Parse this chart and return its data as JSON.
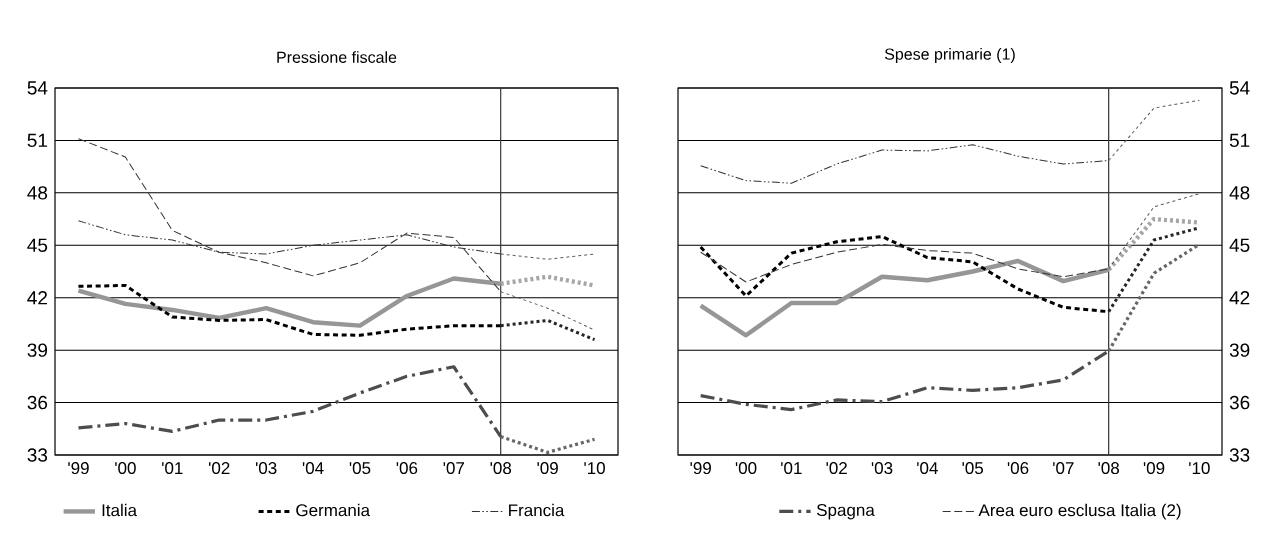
{
  "chart_data": [
    {
      "type": "line",
      "title": "Pressione fiscale",
      "xlim": [
        1998.5,
        2010.5
      ],
      "xticks": [
        {
          "value": 1999,
          "label": "'99"
        },
        {
          "value": 2000,
          "label": "'00"
        },
        {
          "value": 2001,
          "label": "'01"
        },
        {
          "value": 2002,
          "label": "'02"
        },
        {
          "value": 2003,
          "label": "'03"
        },
        {
          "value": 2004,
          "label": "'04"
        },
        {
          "value": 2005,
          "label": "'05"
        },
        {
          "value": 2006,
          "label": "'06"
        },
        {
          "value": 2007,
          "label": "'07"
        },
        {
          "value": 2008,
          "label": "'08"
        },
        {
          "value": 2009,
          "label": "'09"
        },
        {
          "value": 2010,
          "label": "'10"
        }
      ],
      "ylim": [
        33,
        54
      ],
      "yticks": [
        33,
        36,
        39,
        42,
        45,
        48,
        51,
        54
      ],
      "grid": "y",
      "legend": "bottom",
      "ref_lines": [
        {
          "axis": "x",
          "value": 2008,
          "color": "#333333"
        }
      ],
      "series": [
        {
          "name": "Italia",
          "color": "#969696",
          "line_style": "solid",
          "x": [
            1999,
            2000,
            2001,
            2002,
            2003,
            2004,
            2005,
            2006,
            2007,
            2008
          ],
          "values": [
            42.4,
            41.65,
            41.3,
            40.85,
            41.4,
            40.6,
            40.4,
            42.1,
            43.1,
            42.8
          ]
        },
        {
          "name": "Germania",
          "color": "#000000",
          "line_style": "dashed",
          "x": [
            1999,
            2000,
            2001,
            2002,
            2003,
            2004,
            2005,
            2006,
            2007,
            2008
          ],
          "values": [
            42.65,
            42.7,
            40.9,
            40.7,
            40.75,
            39.9,
            39.85,
            40.2,
            40.4,
            40.4
          ]
        },
        {
          "name": "Francia",
          "color": "#333333",
          "line_style": "dashed",
          "x": [
            1999,
            2000,
            2001,
            2002,
            2003,
            2004,
            2005,
            2006,
            2007,
            2008
          ],
          "values": [
            46.4,
            45.6,
            45.3,
            44.6,
            44.5,
            45.0,
            45.3,
            45.6,
            44.9,
            44.5
          ]
        },
        {
          "name": "Spagna",
          "color": "#4d4d4d",
          "line_style": "dashed",
          "x": [
            1999,
            2000,
            2001,
            2002,
            2003,
            2004,
            2005,
            2006,
            2007,
            2008
          ],
          "values": [
            34.55,
            34.8,
            34.35,
            35.0,
            35.0,
            35.5,
            36.55,
            37.5,
            38.05,
            34.05
          ]
        },
        {
          "name": "Area euro esclusa Italia (2)",
          "color": "#333333",
          "line_style": "dashed",
          "x": [
            1999,
            2000,
            2001,
            2002,
            2003,
            2004,
            2005,
            2006,
            2007,
            2008
          ],
          "values": [
            51.1,
            50.05,
            45.85,
            44.6,
            44.0,
            43.25,
            44.0,
            45.7,
            45.45,
            42.35
          ]
        },
        {
          "color": "#a6a6a6",
          "line_style": "dotted",
          "x": [
            2008,
            2009,
            2010
          ],
          "values": [
            42.8,
            43.2,
            42.7
          ]
        },
        {
          "color": "#262626",
          "line_style": "dotted",
          "x": [
            2008,
            2009,
            2010
          ],
          "values": [
            40.4,
            40.7,
            39.6
          ]
        },
        {
          "color": "#595959",
          "line_style": "dotted",
          "x": [
            2008,
            2009,
            2010
          ],
          "values": [
            44.5,
            44.2,
            44.5
          ]
        },
        {
          "color": "#666666",
          "line_style": "dotted",
          "x": [
            2008,
            2009,
            2010
          ],
          "values": [
            34.05,
            33.15,
            33.9
          ]
        },
        {
          "color": "#595959",
          "line_style": "dotted",
          "x": [
            2008,
            2009,
            2010
          ],
          "values": [
            42.35,
            41.4,
            40.15
          ]
        }
      ]
    },
    {
      "type": "line",
      "title": "Spese primarie (1)",
      "xlim": [
        1998.5,
        2010.5
      ],
      "xticks": [
        {
          "value": 1999,
          "label": "'99"
        },
        {
          "value": 2000,
          "label": "'00"
        },
        {
          "value": 2001,
          "label": "'01"
        },
        {
          "value": 2002,
          "label": "'02"
        },
        {
          "value": 2003,
          "label": "'03"
        },
        {
          "value": 2004,
          "label": "'04"
        },
        {
          "value": 2005,
          "label": "'05"
        },
        {
          "value": 2006,
          "label": "'06"
        },
        {
          "value": 2007,
          "label": "'07"
        },
        {
          "value": 2008,
          "label": "'08"
        },
        {
          "value": 2009,
          "label": "'09"
        },
        {
          "value": 2010,
          "label": "'10"
        }
      ],
      "ylim": [
        33,
        54
      ],
      "yticks": [
        33,
        36,
        39,
        42,
        45,
        48,
        51,
        54
      ],
      "grid": "y",
      "ref_lines": [
        {
          "axis": "x",
          "value": 2008,
          "color": "#333333"
        }
      ],
      "series": [
        {
          "color": "#969696",
          "line_style": "solid",
          "x": [
            1999,
            2000,
            2001,
            2002,
            2003,
            2004,
            2005,
            2006,
            2007,
            2008
          ],
          "values": [
            41.55,
            39.85,
            41.7,
            41.7,
            43.2,
            43.0,
            43.5,
            44.1,
            42.95,
            43.6
          ]
        },
        {
          "color": "#000000",
          "line_style": "dashed",
          "x": [
            1999,
            2000,
            2001,
            2002,
            2003,
            2004,
            2005,
            2006,
            2007,
            2008
          ],
          "values": [
            44.9,
            42.1,
            44.55,
            45.2,
            45.5,
            44.3,
            44.05,
            42.5,
            41.45,
            41.2
          ]
        },
        {
          "color": "#333333",
          "line_style": "dashed",
          "x": [
            1999,
            2000,
            2001,
            2002,
            2003,
            2004,
            2005,
            2006,
            2007,
            2008
          ],
          "values": [
            49.55,
            48.7,
            48.55,
            49.65,
            50.45,
            50.4,
            50.75,
            50.1,
            49.65,
            49.85
          ]
        },
        {
          "color": "#4d4d4d",
          "line_style": "dashed",
          "x": [
            1999,
            2000,
            2001,
            2002,
            2003,
            2004,
            2005,
            2006,
            2007,
            2008
          ],
          "values": [
            36.4,
            35.9,
            35.6,
            36.15,
            36.05,
            36.85,
            36.7,
            36.85,
            37.3,
            38.95
          ]
        },
        {
          "color": "#333333",
          "line_style": "dashed",
          "x": [
            1999,
            2000,
            2001,
            2002,
            2003,
            2004,
            2005,
            2006,
            2007,
            2008
          ],
          "values": [
            44.6,
            42.9,
            43.9,
            44.6,
            45.05,
            44.7,
            44.55,
            43.65,
            43.2,
            43.65
          ]
        },
        {
          "color": "#a6a6a6",
          "line_style": "dotted",
          "x": [
            2008,
            2009,
            2010
          ],
          "values": [
            43.6,
            46.5,
            46.3
          ]
        },
        {
          "color": "#262626",
          "line_style": "dotted",
          "x": [
            2008,
            2009,
            2010
          ],
          "values": [
            41.2,
            45.3,
            46.0
          ]
        },
        {
          "color": "#595959",
          "line_style": "dotted",
          "x": [
            2008,
            2009,
            2010
          ],
          "values": [
            49.85,
            52.85,
            53.3
          ]
        },
        {
          "color": "#666666",
          "line_style": "dotted",
          "x": [
            2008,
            2009,
            2010
          ],
          "values": [
            38.95,
            43.4,
            45.05
          ]
        },
        {
          "color": "#595959",
          "line_style": "dotted",
          "x": [
            2008,
            2009,
            2010
          ],
          "values": [
            43.65,
            47.2,
            47.95
          ]
        }
      ]
    }
  ]
}
